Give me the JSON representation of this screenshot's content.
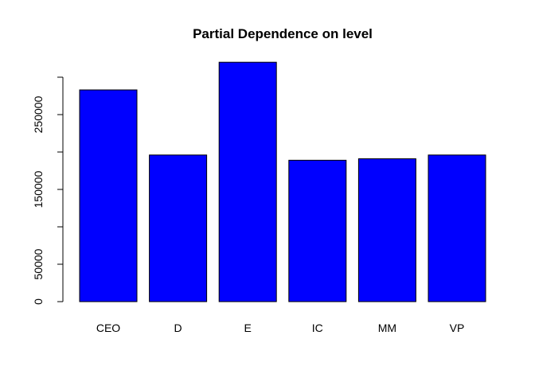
{
  "chart_data": {
    "type": "bar",
    "title": "Partial Dependence on level",
    "xlabel": "",
    "ylabel": "",
    "categories": [
      "CEO",
      "D",
      "E",
      "IC",
      "MM",
      "VP"
    ],
    "values": [
      283000,
      196000,
      320000,
      189000,
      191000,
      196000
    ],
    "ylim": [
      0,
      300000
    ],
    "yticks": [
      0,
      50000,
      100000,
      150000,
      200000,
      250000,
      300000
    ],
    "ytick_labels": [
      "0",
      "50000",
      "",
      "150000",
      "",
      "250000",
      ""
    ],
    "bar_color": "#0000ff",
    "bar_border_color": "#000000",
    "grid": false,
    "legend": "none"
  }
}
